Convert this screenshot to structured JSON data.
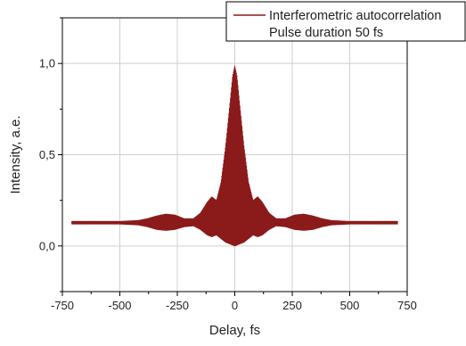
{
  "chart_data": {
    "type": "line",
    "title": "",
    "xlabel": "Delay, fs",
    "ylabel": "Intensity, a.e.",
    "xlim": [
      -750,
      750
    ],
    "ylim": [
      -0.25,
      1.25
    ],
    "x_ticks": [
      -750,
      -500,
      -250,
      0,
      250,
      500,
      750
    ],
    "x_tick_labels": [
      "-750",
      "-500",
      "-250",
      "0",
      "250",
      "500",
      "750"
    ],
    "y_ticks": [
      0.0,
      0.5,
      1.0
    ],
    "y_tick_labels": [
      "0,0",
      "0,5",
      "1,0"
    ],
    "grid": true,
    "legend_position": "top-right",
    "legend": [
      "Interferometric autocorrelation",
      "Pulse duration 50 fs"
    ],
    "colors": {
      "series": "#8b1a1a",
      "grid": "#cfcfcf",
      "axis": "#000000"
    },
    "series": [
      {
        "name": "Interferometric autocorrelation",
        "x_range": [
          -710,
          710
        ],
        "envelope": {
          "x": [
            -710,
            -600,
            -500,
            -420,
            -380,
            -340,
            -300,
            -260,
            -220,
            -180,
            -150,
            -120,
            -100,
            -80,
            -60,
            -40,
            -20,
            -10,
            0,
            10,
            20,
            40,
            60,
            80,
            100,
            120,
            150,
            180,
            220,
            260,
            300,
            340,
            380,
            420,
            500,
            600,
            710
          ],
          "upper": [
            0.135,
            0.135,
            0.135,
            0.14,
            0.15,
            0.165,
            0.175,
            0.17,
            0.15,
            0.15,
            0.18,
            0.24,
            0.27,
            0.25,
            0.35,
            0.55,
            0.8,
            0.93,
            0.99,
            0.93,
            0.8,
            0.55,
            0.35,
            0.25,
            0.27,
            0.24,
            0.18,
            0.15,
            0.15,
            0.17,
            0.175,
            0.165,
            0.15,
            0.14,
            0.135,
            0.135,
            0.135
          ],
          "lower": [
            0.12,
            0.12,
            0.12,
            0.115,
            0.105,
            0.09,
            0.085,
            0.09,
            0.105,
            0.11,
            0.09,
            0.06,
            0.05,
            0.06,
            0.04,
            0.02,
            0.01,
            0.005,
            0.0,
            0.005,
            0.01,
            0.02,
            0.04,
            0.06,
            0.05,
            0.06,
            0.09,
            0.11,
            0.105,
            0.09,
            0.085,
            0.09,
            0.105,
            0.115,
            0.12,
            0.12,
            0.12
          ]
        }
      }
    ]
  }
}
